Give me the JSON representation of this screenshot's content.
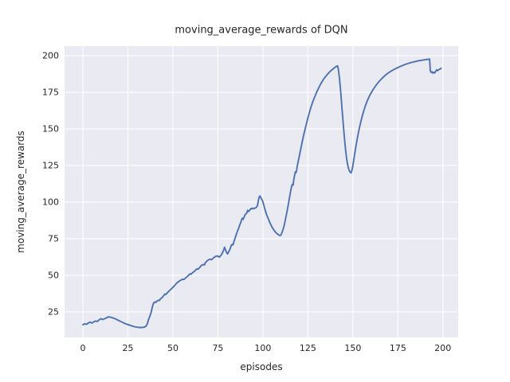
{
  "colors": {
    "figure_background": "#ffffff",
    "plot_background": "#eaeaf2",
    "grid": "#ffffff",
    "text": "#262626",
    "line": "#4c72b0"
  },
  "chart_data": {
    "type": "line",
    "title": "moving_average_rewards of DQN",
    "xlabel": "episodes",
    "ylabel": "moving_average_rewards",
    "x_ticks": [
      0,
      25,
      50,
      75,
      100,
      125,
      150,
      175,
      200
    ],
    "y_ticks": [
      25,
      50,
      75,
      100,
      125,
      150,
      175,
      200
    ],
    "xlim": [
      -10.2,
      208.5
    ],
    "ylim": [
      7.6,
      206.5
    ],
    "grid": true,
    "legend_position": "none",
    "series": [
      {
        "name": "moving_average_rewards",
        "color": "#4c72b0",
        "points": [
          [
            0,
            16.3
          ],
          [
            1,
            16.9
          ],
          [
            2,
            16.6
          ],
          [
            3,
            17.4
          ],
          [
            4,
            18.1
          ],
          [
            5,
            17.4
          ],
          [
            6,
            18.2
          ],
          [
            7,
            18.8
          ],
          [
            8,
            18.5
          ],
          [
            9,
            19.6
          ],
          [
            10,
            20.4
          ],
          [
            11,
            19.8
          ],
          [
            12,
            20.4
          ],
          [
            13,
            20.9
          ],
          [
            14,
            21.6
          ],
          [
            15,
            21.5
          ],
          [
            16,
            21.2
          ],
          [
            17,
            20.8
          ],
          [
            18,
            20.3
          ],
          [
            19,
            19.7
          ],
          [
            20,
            19.1
          ],
          [
            21,
            18.5
          ],
          [
            22,
            17.9
          ],
          [
            23,
            17.3
          ],
          [
            24,
            16.8
          ],
          [
            25,
            16.4
          ],
          [
            26,
            16.0
          ],
          [
            27,
            15.5
          ],
          [
            28,
            15.2
          ],
          [
            29,
            14.8
          ],
          [
            30,
            14.6
          ],
          [
            31,
            14.4
          ],
          [
            32,
            14.4
          ],
          [
            33,
            14.4
          ],
          [
            34,
            14.6
          ],
          [
            35,
            15.2
          ],
          [
            35.7,
            16.6
          ],
          [
            36.3,
            19.3
          ],
          [
            37,
            21.5
          ],
          [
            37.5,
            23.2
          ],
          [
            38,
            25.0
          ],
          [
            38.5,
            28.0
          ],
          [
            39,
            30.3
          ],
          [
            39.5,
            31.4
          ],
          [
            40,
            31.8
          ],
          [
            40.5,
            31.5
          ],
          [
            41,
            32.3
          ],
          [
            42,
            33.0
          ],
          [
            42.5,
            32.8
          ],
          [
            43,
            33.8
          ],
          [
            44,
            34.8
          ],
          [
            45,
            36.3
          ],
          [
            45.5,
            37.2
          ],
          [
            46,
            36.9
          ],
          [
            47,
            38.2
          ],
          [
            48,
            39.5
          ],
          [
            49,
            40.6
          ],
          [
            50,
            41.8
          ],
          [
            51,
            43.1
          ],
          [
            52,
            44.6
          ],
          [
            53,
            45.6
          ],
          [
            54,
            46.4
          ],
          [
            55,
            47.1
          ],
          [
            55.5,
            47.4
          ],
          [
            56,
            47.1
          ],
          [
            57,
            48.1
          ],
          [
            58,
            49.2
          ],
          [
            59,
            50.4
          ],
          [
            59.5,
            51.0
          ],
          [
            60,
            50.7
          ],
          [
            61,
            51.9
          ],
          [
            62,
            52.8
          ],
          [
            63,
            54.1
          ],
          [
            63.5,
            54.4
          ],
          [
            64,
            54.1
          ],
          [
            65,
            55.6
          ],
          [
            66,
            56.9
          ],
          [
            67,
            57.4
          ],
          [
            67.5,
            57.1
          ],
          [
            68,
            58.6
          ],
          [
            69,
            59.9
          ],
          [
            70,
            60.8
          ],
          [
            71,
            61.0
          ],
          [
            71.5,
            60.7
          ],
          [
            72,
            61.3
          ],
          [
            73,
            62.4
          ],
          [
            74,
            63.1
          ],
          [
            75,
            63.2
          ],
          [
            75.7,
            62.4
          ],
          [
            76.5,
            63.4
          ],
          [
            77,
            64.1
          ],
          [
            78,
            66.6
          ],
          [
            78.7,
            69.2
          ],
          [
            79.3,
            67.2
          ],
          [
            80,
            65.2
          ],
          [
            80.4,
            64.6
          ],
          [
            81,
            66.1
          ],
          [
            81.7,
            67.8
          ],
          [
            82.4,
            70.4
          ],
          [
            83,
            71.2
          ],
          [
            83.4,
            70.8
          ],
          [
            84,
            73.4
          ],
          [
            84.7,
            75.9
          ],
          [
            85.4,
            78.6
          ],
          [
            86,
            80.6
          ],
          [
            86.5,
            82.0
          ],
          [
            87,
            84.0
          ],
          [
            87.5,
            85.5
          ],
          [
            88,
            87.2
          ],
          [
            88.5,
            89.0
          ],
          [
            89,
            88.2
          ],
          [
            89.5,
            89.6
          ],
          [
            90,
            91.2
          ],
          [
            90.5,
            92.0
          ],
          [
            91,
            92.4
          ],
          [
            91.5,
            94.4
          ],
          [
            92,
            93.6
          ],
          [
            92.5,
            94.2
          ],
          [
            93,
            95.1
          ],
          [
            93.5,
            95.7
          ],
          [
            94,
            95.3
          ],
          [
            94.5,
            95.9
          ],
          [
            95,
            95.6
          ],
          [
            96,
            96.1
          ],
          [
            96.5,
            96.7
          ],
          [
            97,
            97.7
          ],
          [
            97.5,
            101.2
          ],
          [
            98,
            103.7
          ],
          [
            98.4,
            104.2
          ],
          [
            99,
            102.7
          ],
          [
            99.5,
            101.7
          ],
          [
            100,
            100.1
          ],
          [
            100.5,
            98.1
          ],
          [
            101,
            95.6
          ],
          [
            101.5,
            93.6
          ],
          [
            102,
            91.6
          ],
          [
            102.5,
            90.1
          ],
          [
            103,
            88.6
          ],
          [
            103.5,
            87.1
          ],
          [
            104,
            85.6
          ],
          [
            104.5,
            84.4
          ],
          [
            105,
            83.1
          ],
          [
            105.5,
            82.1
          ],
          [
            106,
            81.1
          ],
          [
            106.5,
            80.3
          ],
          [
            107,
            79.5
          ],
          [
            107.5,
            78.9
          ],
          [
            108,
            78.3
          ],
          [
            108.5,
            77.9
          ],
          [
            109,
            77.4
          ],
          [
            109.5,
            77.1
          ],
          [
            110,
            77.6
          ],
          [
            110.5,
            78.9
          ],
          [
            111,
            80.6
          ],
          [
            111.5,
            82.6
          ],
          [
            112,
            85.1
          ],
          [
            112.5,
            88.1
          ],
          [
            113,
            91.1
          ],
          [
            113.5,
            94.1
          ],
          [
            114,
            97.6
          ],
          [
            114.5,
            101.1
          ],
          [
            115,
            104.6
          ],
          [
            115.5,
            108.1
          ],
          [
            116,
            111.1
          ],
          [
            116.4,
            112.1
          ],
          [
            116.8,
            111.6
          ],
          [
            117,
            114.1
          ],
          [
            117.5,
            117.6
          ],
          [
            118,
            120.6
          ],
          [
            118.4,
            120.1
          ],
          [
            118.8,
            122.1
          ],
          [
            119,
            124.1
          ],
          [
            119.5,
            127.1
          ],
          [
            120,
            130.1
          ],
          [
            121,
            136.1
          ],
          [
            122,
            142.1
          ],
          [
            123,
            147.6
          ],
          [
            124,
            152.6
          ],
          [
            125,
            157.5
          ],
          [
            126,
            162.0
          ],
          [
            127,
            166.0
          ],
          [
            128,
            169.5
          ],
          [
            129,
            172.5
          ],
          [
            130,
            175.5
          ],
          [
            131,
            178.0
          ],
          [
            132,
            180.5
          ],
          [
            133,
            182.5
          ],
          [
            134,
            184.5
          ],
          [
            135,
            186.0
          ],
          [
            136,
            187.5
          ],
          [
            137,
            188.8
          ],
          [
            138,
            190.0
          ],
          [
            139,
            191.0
          ],
          [
            140,
            192.0
          ],
          [
            141,
            192.8
          ],
          [
            141.5,
            193.0
          ],
          [
            142,
            190.0
          ],
          [
            142.5,
            185.0
          ],
          [
            143,
            178.5
          ],
          [
            143.5,
            171.0
          ],
          [
            144,
            163.0
          ],
          [
            144.5,
            155.5
          ],
          [
            145,
            148.0
          ],
          [
            145.5,
            141.0
          ],
          [
            146,
            135.0
          ],
          [
            146.5,
            129.8
          ],
          [
            147,
            126.0
          ],
          [
            147.5,
            123.3
          ],
          [
            148,
            121.5
          ],
          [
            148.5,
            120.4
          ],
          [
            149,
            120.0
          ],
          [
            149.5,
            121.8
          ],
          [
            150,
            125.0
          ],
          [
            150.5,
            129.0
          ],
          [
            151,
            133.0
          ],
          [
            151.5,
            136.8
          ],
          [
            152,
            140.5
          ],
          [
            152.5,
            143.8
          ],
          [
            153,
            147.0
          ],
          [
            153.5,
            150.0
          ],
          [
            154,
            152.8
          ],
          [
            154.5,
            155.4
          ],
          [
            155,
            157.8
          ],
          [
            156,
            162.2
          ],
          [
            157,
            166.0
          ],
          [
            158,
            169.2
          ],
          [
            159,
            172.0
          ],
          [
            160,
            174.3
          ],
          [
            161,
            176.4
          ],
          [
            162,
            178.3
          ],
          [
            163,
            180.0
          ],
          [
            164,
            181.6
          ],
          [
            165,
            183.0
          ],
          [
            166,
            184.3
          ],
          [
            167,
            185.5
          ],
          [
            168,
            186.6
          ],
          [
            169,
            187.6
          ],
          [
            170,
            188.5
          ],
          [
            171,
            189.3
          ],
          [
            172,
            190.0
          ],
          [
            173,
            190.7
          ],
          [
            174,
            191.3
          ],
          [
            175,
            191.9
          ],
          [
            176,
            192.5
          ],
          [
            177,
            193.0
          ],
          [
            178,
            193.5
          ],
          [
            179,
            194.0
          ],
          [
            180,
            194.4
          ],
          [
            181,
            194.8
          ],
          [
            182,
            195.2
          ],
          [
            183,
            195.5
          ],
          [
            184,
            195.8
          ],
          [
            185,
            196.1
          ],
          [
            186,
            196.4
          ],
          [
            187,
            196.6
          ],
          [
            188,
            196.8
          ],
          [
            189,
            197.0
          ],
          [
            190,
            197.2
          ],
          [
            191,
            197.4
          ],
          [
            192,
            197.6
          ],
          [
            192.6,
            197.7
          ],
          [
            193,
            189.8
          ],
          [
            193.4,
            188.6
          ],
          [
            194,
            189.0
          ],
          [
            194.4,
            188.1
          ],
          [
            195,
            188.7
          ],
          [
            195.4,
            188.2
          ],
          [
            196,
            189.3
          ],
          [
            196.6,
            190.4
          ],
          [
            197,
            189.8
          ],
          [
            197.6,
            190.3
          ],
          [
            198,
            190.7
          ],
          [
            198.6,
            191.0
          ],
          [
            199,
            191.4
          ]
        ]
      }
    ]
  }
}
